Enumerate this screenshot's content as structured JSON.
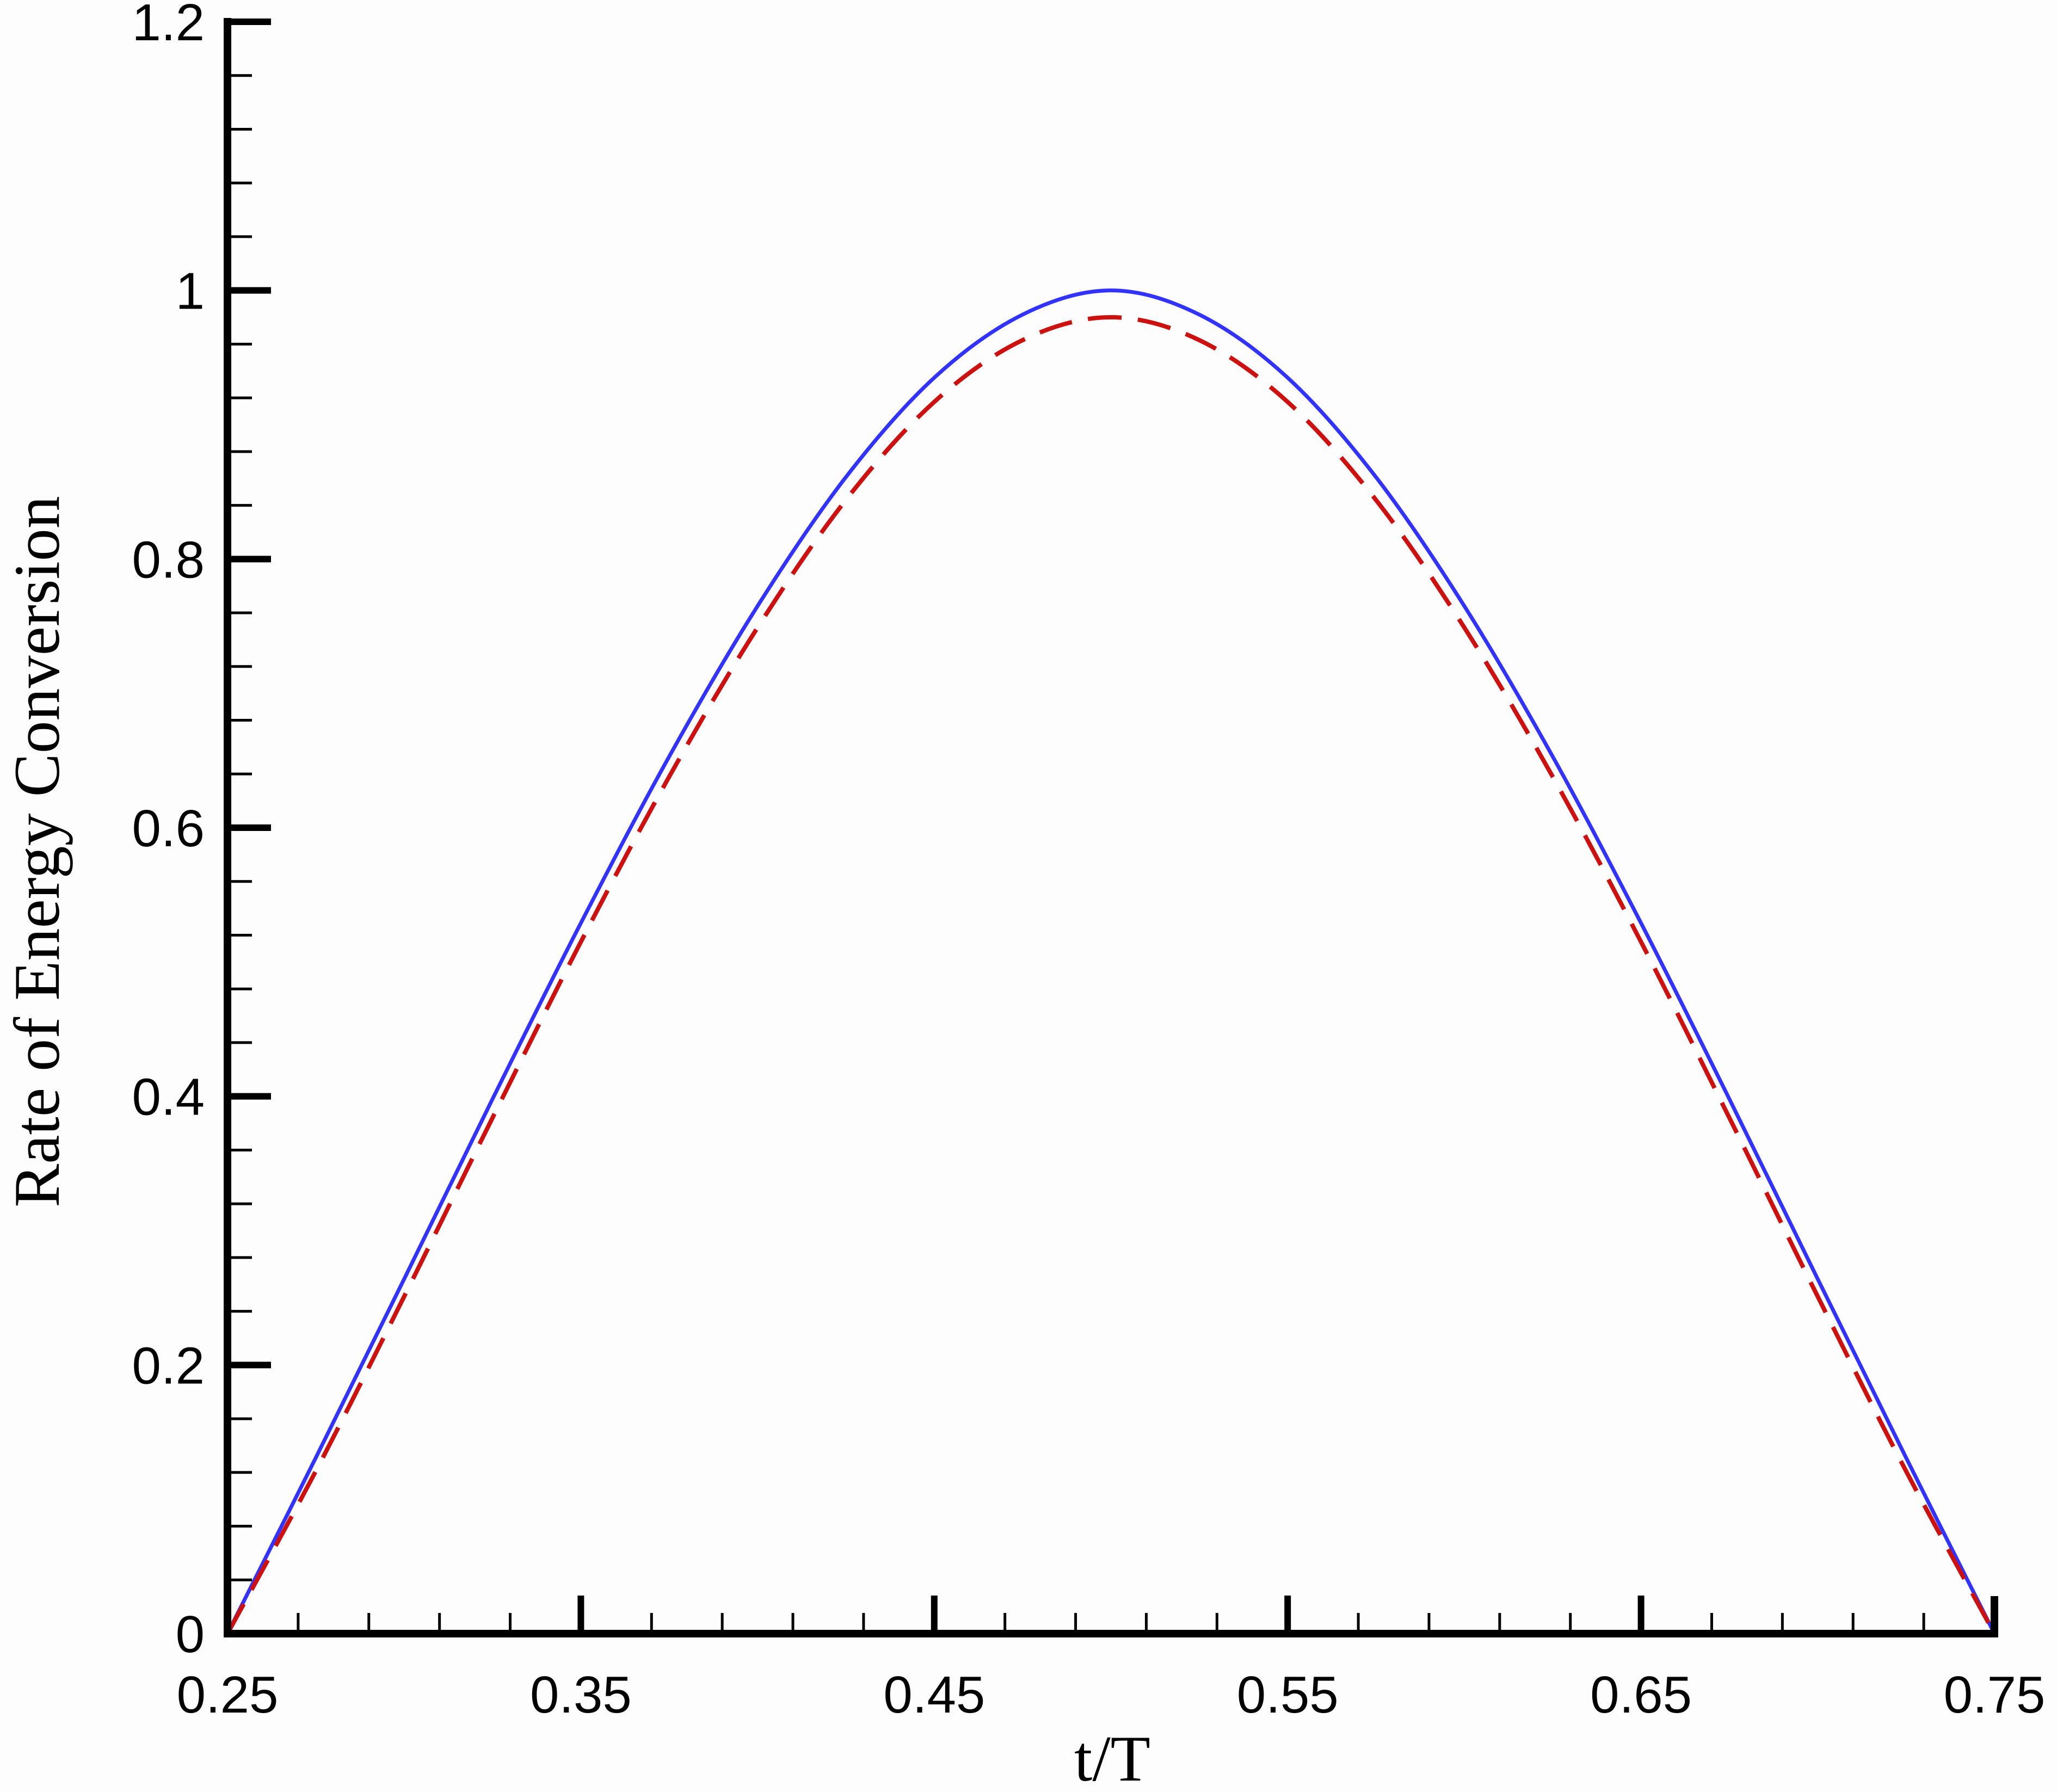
{
  "chart_data": {
    "type": "line",
    "xlabel": "t/T",
    "ylabel": "Rate of Energy Conversion",
    "xlim": [
      0.25,
      0.75
    ],
    "ylim": [
      0,
      1.2
    ],
    "x_ticks": [
      "0.25",
      "0.35",
      "0.45",
      "0.55",
      "0.65",
      "0.75"
    ],
    "y_ticks": [
      "0",
      "0.2",
      "0.4",
      "0.6",
      "0.8",
      "1",
      "1.2"
    ],
    "grid": false,
    "legend": "none",
    "x": [
      0.25,
      0.275,
      0.3,
      0.325,
      0.35,
      0.375,
      0.4,
      0.425,
      0.45,
      0.475,
      0.5,
      0.525,
      0.55,
      0.575,
      0.6,
      0.625,
      0.65,
      0.675,
      0.7,
      0.725,
      0.75
    ],
    "series": [
      {
        "style": "solid",
        "color": "#3333ff",
        "values": [
          0.0,
          0.131,
          0.264,
          0.398,
          0.529,
          0.653,
          0.765,
          0.861,
          0.935,
          0.982,
          1.0,
          0.982,
          0.935,
          0.861,
          0.765,
          0.653,
          0.529,
          0.398,
          0.264,
          0.131,
          0.0
        ]
      },
      {
        "style": "dashed",
        "color": "#cc1111",
        "values": [
          0.0,
          0.121,
          0.251,
          0.384,
          0.515,
          0.638,
          0.749,
          0.844,
          0.917,
          0.963,
          0.98,
          0.963,
          0.917,
          0.844,
          0.749,
          0.638,
          0.515,
          0.384,
          0.251,
          0.121,
          0.0
        ]
      }
    ]
  }
}
